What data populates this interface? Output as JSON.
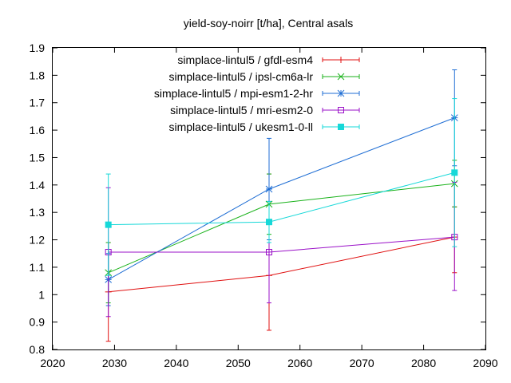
{
  "chart_data": {
    "type": "line",
    "title": "yield-soy-noirr [t/ha], Central asals",
    "xlabel": "",
    "ylabel": "",
    "xlim": [
      2020,
      2090
    ],
    "ylim": [
      0.8,
      1.9
    ],
    "xticks": [
      "2020",
      "2030",
      "2040",
      "2050",
      "2060",
      "2070",
      "2080",
      "2090"
    ],
    "yticks": [
      "0.8",
      "0.9",
      "1",
      "1.1",
      "1.2",
      "1.3",
      "1.4",
      "1.5",
      "1.6",
      "1.7",
      "1.8",
      "1.9"
    ],
    "grid": false,
    "legend_position": "top-right",
    "x": [
      2029,
      2055,
      2085
    ],
    "series": [
      {
        "name": "simplace-lintul5 / gfdl-esm4",
        "color": "#e01010",
        "marker": "plus",
        "values": [
          1.01,
          1.07,
          1.21
        ],
        "err_low": [
          0.83,
          0.87,
          1.08
        ],
        "err_high": [
          1.19,
          1.44,
          1.32
        ]
      },
      {
        "name": "simplace-lintul5 / ipsl-cm6a-lr",
        "color": "#19b21a",
        "marker": "cross",
        "values": [
          1.08,
          1.33,
          1.405
        ],
        "err_low": [
          0.97,
          1.22,
          1.32
        ],
        "err_high": [
          1.19,
          1.44,
          1.49
        ]
      },
      {
        "name": "simplace-lintul5 / mpi-esm1-2-hr",
        "color": "#1f6ed4",
        "marker": "star",
        "values": [
          1.055,
          1.385,
          1.645
        ],
        "err_low": [
          0.96,
          1.2,
          1.47
        ],
        "err_high": [
          1.15,
          1.57,
          1.82
        ]
      },
      {
        "name": "simplace-lintul5 / mri-esm2-0",
        "color": "#9a10c8",
        "marker": "open-square",
        "values": [
          1.155,
          1.155,
          1.21
        ],
        "err_low": [
          0.92,
          0.97,
          1.015
        ],
        "err_high": [
          1.39,
          1.34,
          1.41
        ]
      },
      {
        "name": "simplace-lintul5 / ukesm1-0-ll",
        "color": "#16d8d8",
        "marker": "filled-square",
        "values": [
          1.255,
          1.265,
          1.445
        ],
        "err_low": [
          1.07,
          1.19,
          1.175
        ],
        "err_high": [
          1.44,
          1.34,
          1.715
        ]
      }
    ]
  }
}
